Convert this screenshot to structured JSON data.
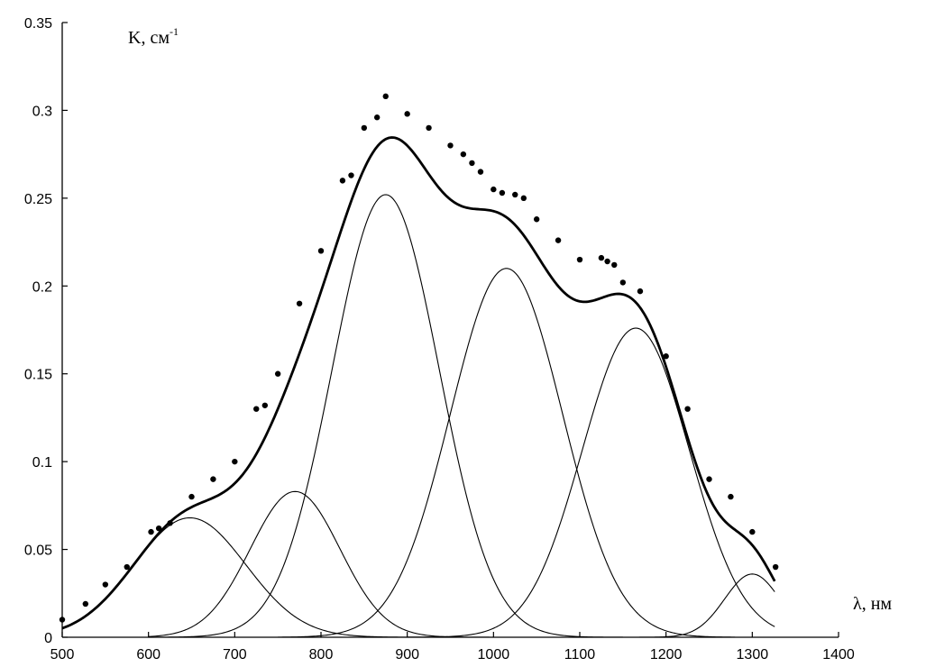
{
  "chart_data": {
    "type": "line",
    "ylabel": "K, см",
    "ylabel_sup": "-1",
    "xlabel": "λ, нм",
    "xlim": [
      500,
      1400
    ],
    "ylim": [
      0,
      0.35
    ],
    "x_ticks": [
      "500",
      "600",
      "700",
      "800",
      "900",
      "1000",
      "1100",
      "1200",
      "1300",
      "1400"
    ],
    "y_ticks": [
      "0",
      "0.05",
      "0.1",
      "0.15",
      "0.2",
      "0.25",
      "0.3",
      "0.35"
    ],
    "grid": false,
    "legend": "none",
    "series": [
      {
        "kind": "points",
        "x": [
          500,
          527,
          550,
          575,
          603,
          612,
          625,
          650,
          675,
          700,
          725,
          735,
          750,
          775,
          800,
          825,
          835,
          850,
          865,
          875,
          900,
          925,
          950,
          965,
          975,
          985,
          1000,
          1010,
          1025,
          1035,
          1050,
          1075,
          1100,
          1125,
          1132,
          1140,
          1150,
          1170,
          1200,
          1225,
          1250,
          1275,
          1300,
          1327
        ],
        "y": [
          0.01,
          0.019,
          0.03,
          0.04,
          0.06,
          0.062,
          0.065,
          0.08,
          0.09,
          0.1,
          0.13,
          0.132,
          0.15,
          0.19,
          0.22,
          0.26,
          0.263,
          0.29,
          0.296,
          0.308,
          0.298,
          0.29,
          0.28,
          0.275,
          0.27,
          0.265,
          0.255,
          0.253,
          0.252,
          0.25,
          0.238,
          0.226,
          0.215,
          0.216,
          0.214,
          0.212,
          0.202,
          0.197,
          0.16,
          0.13,
          0.09,
          0.08,
          0.06,
          0.04
        ]
      },
      {
        "kind": "fit",
        "x_range": [
          500,
          1327
        ]
      },
      {
        "kind": "gaussian",
        "center": 648,
        "amplitude": 0.068,
        "sigma": 65,
        "x_range": [
          500,
          1000
        ]
      },
      {
        "kind": "gaussian",
        "center": 770,
        "amplitude": 0.083,
        "sigma": 52,
        "x_range": [
          600,
          1000
        ]
      },
      {
        "kind": "gaussian",
        "center": 875,
        "amplitude": 0.252,
        "sigma": 62,
        "x_range": [
          600,
          1150
        ]
      },
      {
        "kind": "gaussian",
        "center": 1015,
        "amplitude": 0.21,
        "sigma": 65,
        "x_range": [
          750,
          1280
        ]
      },
      {
        "kind": "gaussian",
        "center": 1165,
        "amplitude": 0.176,
        "sigma": 62,
        "x_range": [
          900,
          1327
        ]
      },
      {
        "kind": "gaussian",
        "center": 1300,
        "amplitude": 0.036,
        "sigma": 32,
        "x_range": [
          1150,
          1327
        ]
      }
    ]
  }
}
